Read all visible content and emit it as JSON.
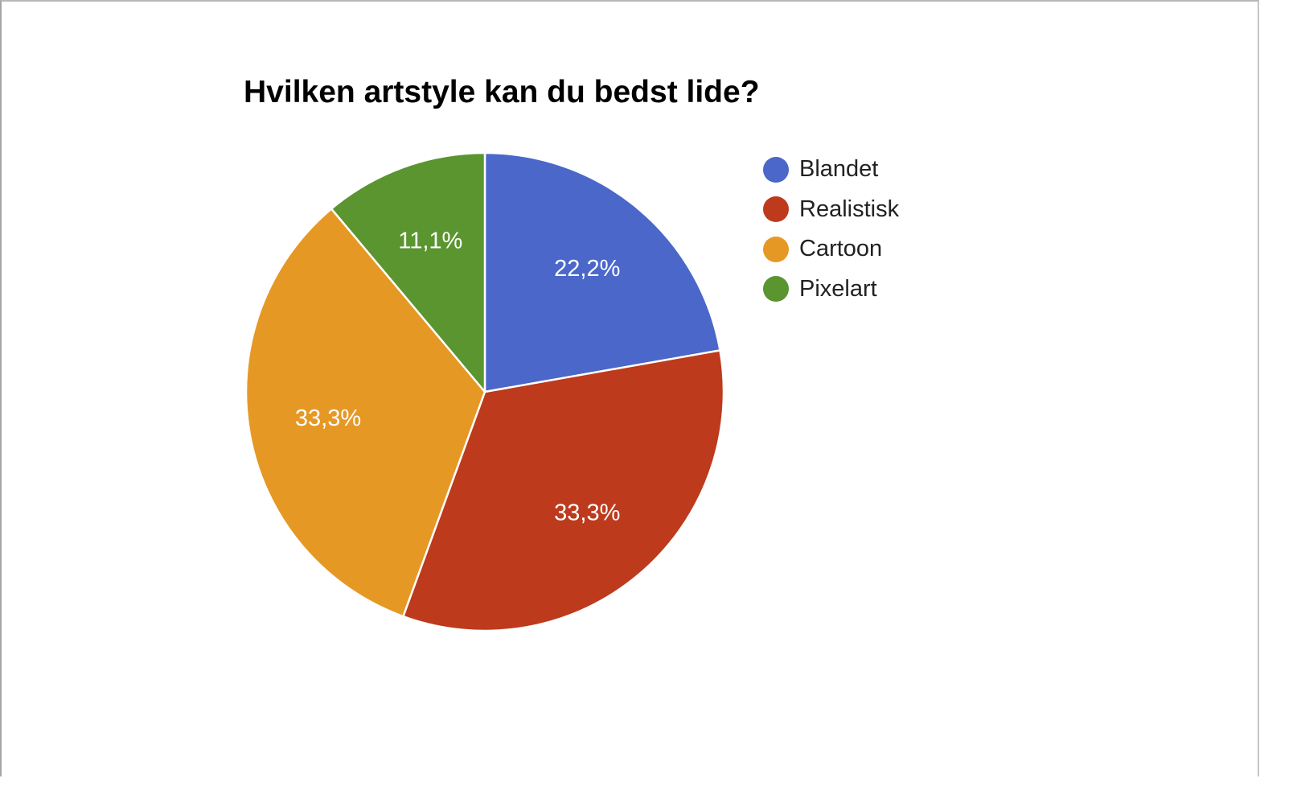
{
  "chart_data": {
    "type": "pie",
    "title": "Hvilken artstyle kan du bedst lide?",
    "slices": [
      {
        "name": "Blandet",
        "value": 22.2,
        "label": "22,2%",
        "color": "#4a67c9"
      },
      {
        "name": "Realistisk",
        "value": 33.3,
        "label": "33,3%",
        "color": "#bd3a1d"
      },
      {
        "name": "Cartoon",
        "value": 33.3,
        "label": "33,3%",
        "color": "#e69825"
      },
      {
        "name": "Pixelart",
        "value": 11.1,
        "label": "11,1%",
        "color": "#5a9530"
      }
    ],
    "legend": "right",
    "start": "top, clockwise"
  }
}
